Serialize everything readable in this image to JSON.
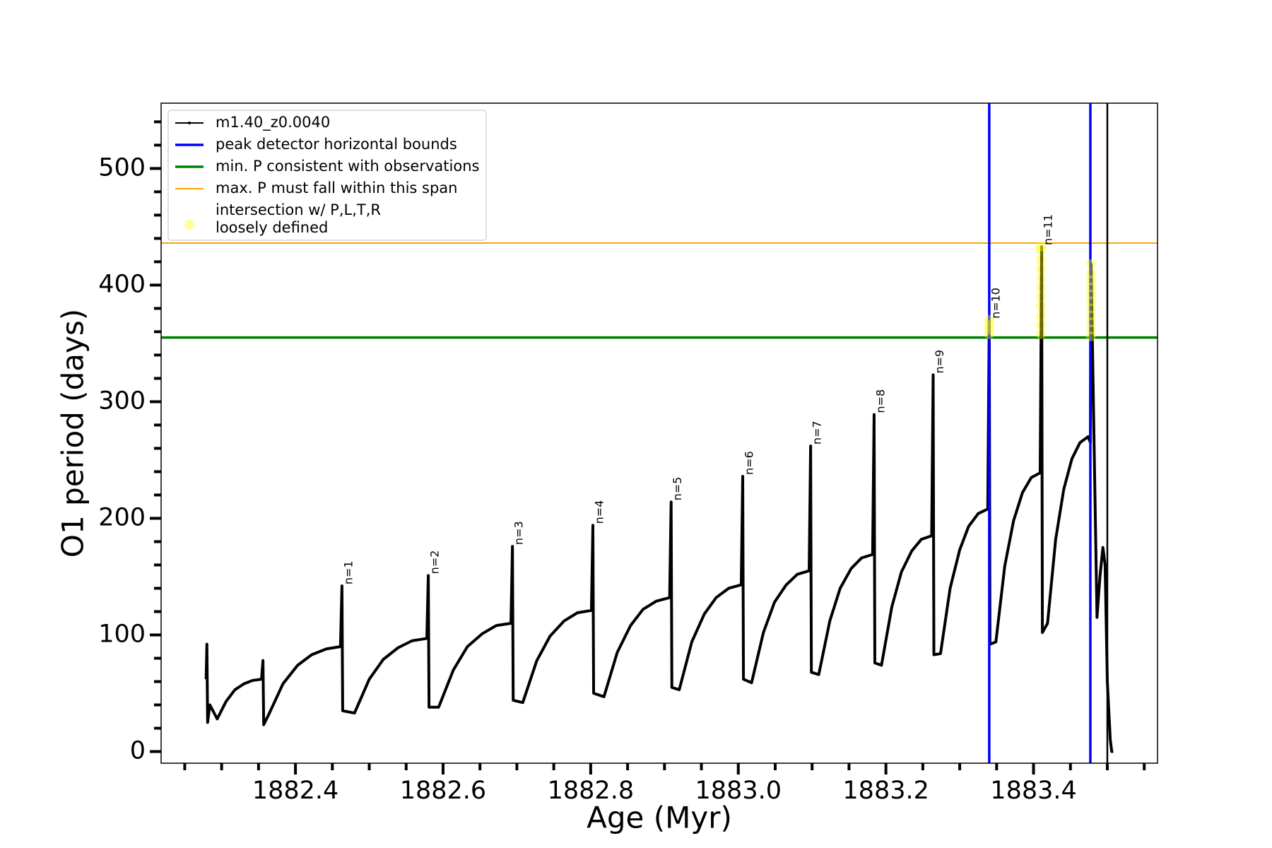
{
  "chart_data": {
    "type": "line",
    "xlabel": "Age (Myr)",
    "ylabel": "O1 period (days)",
    "xlim": [
      1882.218,
      1883.568
    ],
    "ylim": [
      -10,
      556
    ],
    "xticks": [
      1882.4,
      1882.6,
      1882.8,
      {
        "value": 1883,
        "label": "1883.0"
      },
      1883.2,
      1883.4
    ],
    "xminorticks": [
      1882.25,
      1882.3,
      1882.35,
      1882.45,
      1882.5,
      1882.55,
      1882.65,
      1882.7,
      1882.75,
      1882.85,
      1882.9,
      1882.95,
      1883.05,
      1883.1,
      1883.15,
      1883.25,
      1883.3,
      1883.35,
      1883.45,
      1883.5,
      1883.55
    ],
    "yticks": [
      0,
      100,
      200,
      300,
      400,
      500
    ],
    "yminorticks": [
      20,
      40,
      60,
      80,
      120,
      140,
      160,
      180,
      220,
      240,
      260,
      280,
      320,
      340,
      360,
      380,
      420,
      440,
      460,
      480,
      520,
      540
    ],
    "legend": "upper left",
    "series": [
      {
        "name": "m1.40_z0.0040",
        "color": "#000000",
        "kind": "line",
        "x": [
          1882.279,
          1882.28,
          1882.281,
          1882.284,
          1882.294,
          1882.306,
          1882.318,
          1882.33,
          1882.342,
          1882.354,
          1882.356,
          1882.357,
          1882.364,
          1882.383,
          1882.403,
          1882.422,
          1882.442,
          1882.461,
          1882.463,
          1882.464,
          1882.48,
          1882.5,
          1882.519,
          1882.539,
          1882.558,
          1882.578,
          1882.58,
          1882.581,
          1882.594,
          1882.614,
          1882.633,
          1882.653,
          1882.672,
          1882.692,
          1882.694,
          1882.695,
          1882.708,
          1882.727,
          1882.745,
          1882.764,
          1882.782,
          1882.801,
          1882.803,
          1882.804,
          1882.818,
          1882.836,
          1882.854,
          1882.871,
          1882.889,
          1882.907,
          1882.909,
          1882.91,
          1882.92,
          1882.937,
          1882.954,
          1882.97,
          1882.987,
          1883.004,
          1883.006,
          1883.007,
          1883.018,
          1883.034,
          1883.049,
          1883.065,
          1883.08,
          1883.096,
          1883.098,
          1883.099,
          1883.109,
          1883.124,
          1883.138,
          1883.153,
          1883.167,
          1883.182,
          1883.184,
          1883.185,
          1883.194,
          1883.208,
          1883.221,
          1883.235,
          1883.248,
          1883.262,
          1883.264,
          1883.265,
          1883.274,
          1883.287,
          1883.3,
          1883.312,
          1883.325,
          1883.338,
          1883.34,
          1883.341,
          1883.349,
          1883.361,
          1883.373,
          1883.385,
          1883.397,
          1883.409,
          1883.411,
          1883.412,
          1883.419,
          1883.43,
          1883.441,
          1883.452,
          1883.463,
          1883.474,
          1883.477,
          1883.478,
          1883.486,
          1883.49,
          1883.494,
          1883.497,
          1883.5,
          1883.504,
          1883.506,
          1883.508
        ],
        "values": [
          62,
          92,
          25,
          40,
          28,
          43,
          53,
          58,
          61,
          62,
          78,
          23,
          32,
          58,
          74,
          83,
          88,
          90,
          142,
          35,
          33,
          62,
          79,
          89,
          95,
          97,
          151,
          38,
          38,
          70,
          90,
          101,
          108,
          110,
          176,
          44,
          42,
          78,
          99,
          112,
          119,
          121,
          194,
          50,
          47,
          85,
          108,
          122,
          129,
          132,
          214,
          55,
          53,
          94,
          118,
          132,
          140,
          143,
          236,
          62,
          59,
          102,
          128,
          143,
          152,
          155,
          262,
          68,
          66,
          112,
          140,
          157,
          166,
          169,
          289,
          76,
          74,
          124,
          154,
          172,
          182,
          185,
          323,
          83,
          84,
          140,
          173,
          193,
          204,
          208,
          370,
          92,
          94,
          159,
          198,
          222,
          235,
          239,
          433,
          102,
          110,
          182,
          225,
          251,
          265,
          270,
          265,
          418,
          115,
          150,
          175,
          160,
          60,
          10,
          0,
          0
        ]
      },
      {
        "name": "peak detector horizontal bounds",
        "color": "#0000ff",
        "kind": "vline",
        "x": [
          1883.34,
          1883.477
        ]
      },
      {
        "name": "min. P consistent with observations",
        "color": "#008000",
        "kind": "hline",
        "values": [
          355
        ]
      },
      {
        "name": "max. P must fall within this span",
        "color": "#ffa500",
        "kind": "hline",
        "values": [
          436
        ]
      },
      {
        "name": "intersection w/ P,L,T,R\nloosely defined",
        "color": "#ffff00",
        "kind": "scatter",
        "x": [
          1883.34,
          1883.34,
          1883.34,
          1883.34,
          1883.41,
          1883.41,
          1883.41,
          1883.41,
          1883.41,
          1883.41,
          1883.41,
          1883.41,
          1883.41,
          1883.41,
          1883.41,
          1883.478,
          1883.478,
          1883.478,
          1883.478,
          1883.478,
          1883.478,
          1883.478,
          1883.478,
          1883.478,
          1883.478,
          1883.478
        ],
        "values": [
          358,
          362,
          366,
          370,
          358,
          366,
          374,
          382,
          390,
          398,
          406,
          414,
          422,
          430,
          433,
          356,
          362,
          368,
          374,
          380,
          386,
          392,
          398,
          404,
          410,
          418
        ]
      }
    ],
    "vlines": [
      {
        "x": 1883.5,
        "color": "#000000"
      }
    ],
    "annotations": [
      {
        "text": "n=1",
        "x": 1882.463,
        "y": 142
      },
      {
        "text": "n=2",
        "x": 1882.58,
        "y": 151
      },
      {
        "text": "n=3",
        "x": 1882.694,
        "y": 176
      },
      {
        "text": "n=4",
        "x": 1882.803,
        "y": 194
      },
      {
        "text": "n=5",
        "x": 1882.909,
        "y": 214
      },
      {
        "text": "n=6",
        "x": 1883.006,
        "y": 236
      },
      {
        "text": "n=7",
        "x": 1883.098,
        "y": 262
      },
      {
        "text": "n=8",
        "x": 1883.184,
        "y": 289
      },
      {
        "text": "n=9",
        "x": 1883.264,
        "y": 323
      },
      {
        "text": "n=10",
        "x": 1883.34,
        "y": 370
      },
      {
        "text": "n=11",
        "x": 1883.411,
        "y": 433
      }
    ]
  }
}
